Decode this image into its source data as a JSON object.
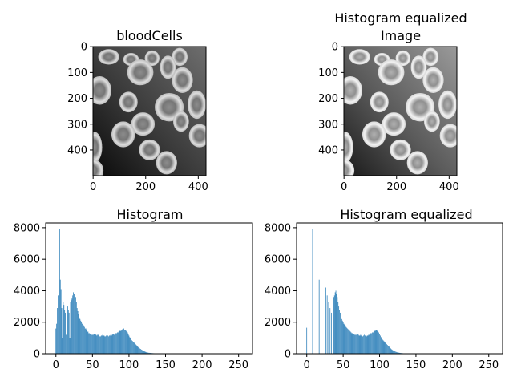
{
  "chart_data": [
    {
      "type": "image",
      "title": "bloodCells",
      "image_size": [
        430,
        500
      ],
      "xticks": [
        0,
        200,
        400
      ],
      "yticks": [
        0,
        100,
        200,
        300,
        400
      ],
      "equalized": false
    },
    {
      "type": "image",
      "title_lines": [
        "Histogram equalized",
        "Image"
      ],
      "image_size": [
        430,
        500
      ],
      "xticks": [
        0,
        200,
        400
      ],
      "yticks": [
        0,
        100,
        200,
        300,
        400
      ],
      "equalized": true
    },
    {
      "type": "bar",
      "title": "Histogram",
      "xlim": [
        -14,
        269
      ],
      "ylim": [
        0,
        8300
      ],
      "xticks": [
        0,
        50,
        100,
        150,
        200,
        250
      ],
      "yticks": [
        0,
        2000,
        4000,
        6000,
        8000
      ],
      "color": "#1f77b4",
      "x_start": 0,
      "values": [
        1600,
        1900,
        2900,
        3700,
        6300,
        7900,
        4700,
        4100,
        2900,
        1000,
        3300,
        3100,
        2800,
        2600,
        1200,
        3200,
        3000,
        2800,
        2600,
        1000,
        3300,
        3400,
        3500,
        3700,
        3900,
        3800,
        4000,
        3600,
        3300,
        2900,
        2700,
        2500,
        2300,
        2200,
        2100,
        2000,
        1900,
        1900,
        1800,
        1700,
        1600,
        1600,
        1500,
        1400,
        1400,
        1300,
        1300,
        1250,
        1250,
        1200,
        1200,
        1200,
        1250,
        1250,
        1250,
        1200,
        1150,
        1200,
        1200,
        1150,
        1100,
        1100,
        1150,
        1150,
        1200,
        1150,
        1150,
        1100,
        1100,
        1150,
        1150,
        1150,
        1100,
        1150,
        1150,
        1200,
        1150,
        1200,
        1250,
        1250,
        1200,
        1250,
        1300,
        1300,
        1350,
        1350,
        1400,
        1450,
        1450,
        1450,
        1500,
        1550,
        1550,
        1600,
        1500,
        1500,
        1450,
        1400,
        1350,
        1250,
        1150,
        1050,
        1000,
        900,
        850,
        800,
        750,
        700,
        650,
        600,
        550,
        500,
        450,
        400,
        370,
        330,
        300,
        260,
        230,
        200,
        170,
        150,
        130,
        110,
        90,
        80,
        70,
        60,
        55,
        50,
        45,
        40,
        35,
        30,
        28,
        25,
        22,
        20,
        18,
        16,
        14,
        12,
        10,
        9,
        8,
        7,
        6,
        5,
        4,
        3,
        3,
        2,
        2,
        1,
        1,
        1,
        1,
        0,
        0,
        0,
        0,
        0,
        0,
        0,
        0,
        0,
        0,
        0,
        0,
        0,
        0,
        0,
        0,
        0,
        0,
        0,
        0,
        0,
        0,
        0,
        0,
        0,
        0,
        0,
        0,
        0,
        0,
        0,
        0,
        0,
        0,
        0,
        0,
        0,
        0,
        0,
        0,
        0,
        0,
        0,
        0,
        0,
        0,
        0,
        0,
        0,
        0,
        0,
        0,
        0,
        0,
        0,
        0,
        0,
        0,
        0,
        0,
        0,
        0,
        0,
        0,
        0,
        0,
        0,
        0,
        0,
        0,
        0,
        0,
        0,
        0,
        0,
        0,
        0,
        0,
        0,
        0,
        0,
        0,
        0,
        0,
        0,
        0,
        0,
        0,
        0,
        0,
        0,
        0,
        0,
        0,
        0,
        0,
        0,
        0,
        0,
        0,
        0,
        0,
        0
      ]
    },
    {
      "type": "bar",
      "title": "Histogram equalized",
      "xlim": [
        -14,
        269
      ],
      "ylim": [
        0,
        8300
      ],
      "xticks": [
        0,
        50,
        100,
        150,
        200,
        250
      ],
      "yticks": [
        0,
        2000,
        4000,
        6000,
        8000
      ],
      "color": "#1f77b4",
      "x_start": 0,
      "values": [
        1650,
        0,
        0,
        0,
        0,
        0,
        0,
        0,
        7900,
        0,
        0,
        0,
        0,
        0,
        0,
        0,
        0,
        4700,
        0,
        0,
        0,
        0,
        0,
        0,
        0,
        0,
        4200,
        0,
        3700,
        0,
        3300,
        0,
        2900,
        0,
        2600,
        0,
        3500,
        3600,
        3700,
        3900,
        4000,
        3800,
        3600,
        3300,
        3000,
        2800,
        2600,
        2400,
        2200,
        2100,
        2000,
        1900,
        1850,
        1800,
        1700,
        1650,
        1600,
        1550,
        1500,
        1450,
        1400,
        1350,
        1300,
        1300,
        1250,
        1250,
        1200,
        1200,
        1200,
        1250,
        1250,
        1200,
        1150,
        1150,
        1200,
        1150,
        1100,
        1100,
        1150,
        1200,
        1150,
        1150,
        1100,
        1150,
        1150,
        1200,
        1200,
        1250,
        1300,
        1300,
        1350,
        1350,
        1400,
        1450,
        1450,
        1500,
        1500,
        1450,
        1400,
        1350,
        1250,
        1150,
        1050,
        950,
        900,
        850,
        800,
        750,
        700,
        650,
        600,
        550,
        500,
        450,
        400,
        350,
        300,
        260,
        230,
        200,
        170,
        150,
        130,
        110,
        90,
        80,
        70,
        60,
        50,
        45,
        40,
        35,
        30,
        25,
        22,
        20,
        18,
        15,
        12,
        10,
        8,
        7,
        6,
        5,
        4,
        3,
        3,
        2,
        2,
        1,
        1,
        1,
        0,
        0,
        0,
        0,
        0,
        0,
        0,
        0,
        0,
        0,
        0,
        0,
        0,
        0,
        0,
        0,
        0,
        0,
        0,
        0,
        0,
        0,
        0,
        0,
        0,
        0,
        0,
        0,
        0,
        0,
        0,
        0,
        0,
        0,
        0,
        0,
        0,
        0,
        0,
        0,
        0,
        0,
        0,
        0,
        0,
        0,
        0,
        0,
        0,
        0,
        0,
        0,
        0,
        0,
        0,
        0,
        0,
        0,
        0,
        0,
        0,
        0,
        0,
        0,
        0,
        0,
        0,
        0,
        0,
        0,
        0,
        0,
        0,
        0,
        0,
        0,
        0,
        0,
        0,
        0,
        0,
        0,
        0,
        0,
        0,
        0,
        0,
        0,
        0,
        0,
        0,
        0,
        0,
        0,
        0,
        0,
        0,
        0,
        0,
        0,
        0,
        0,
        0,
        0,
        0,
        0,
        0,
        0,
        0,
        0,
        0,
        0
      ]
    }
  ]
}
